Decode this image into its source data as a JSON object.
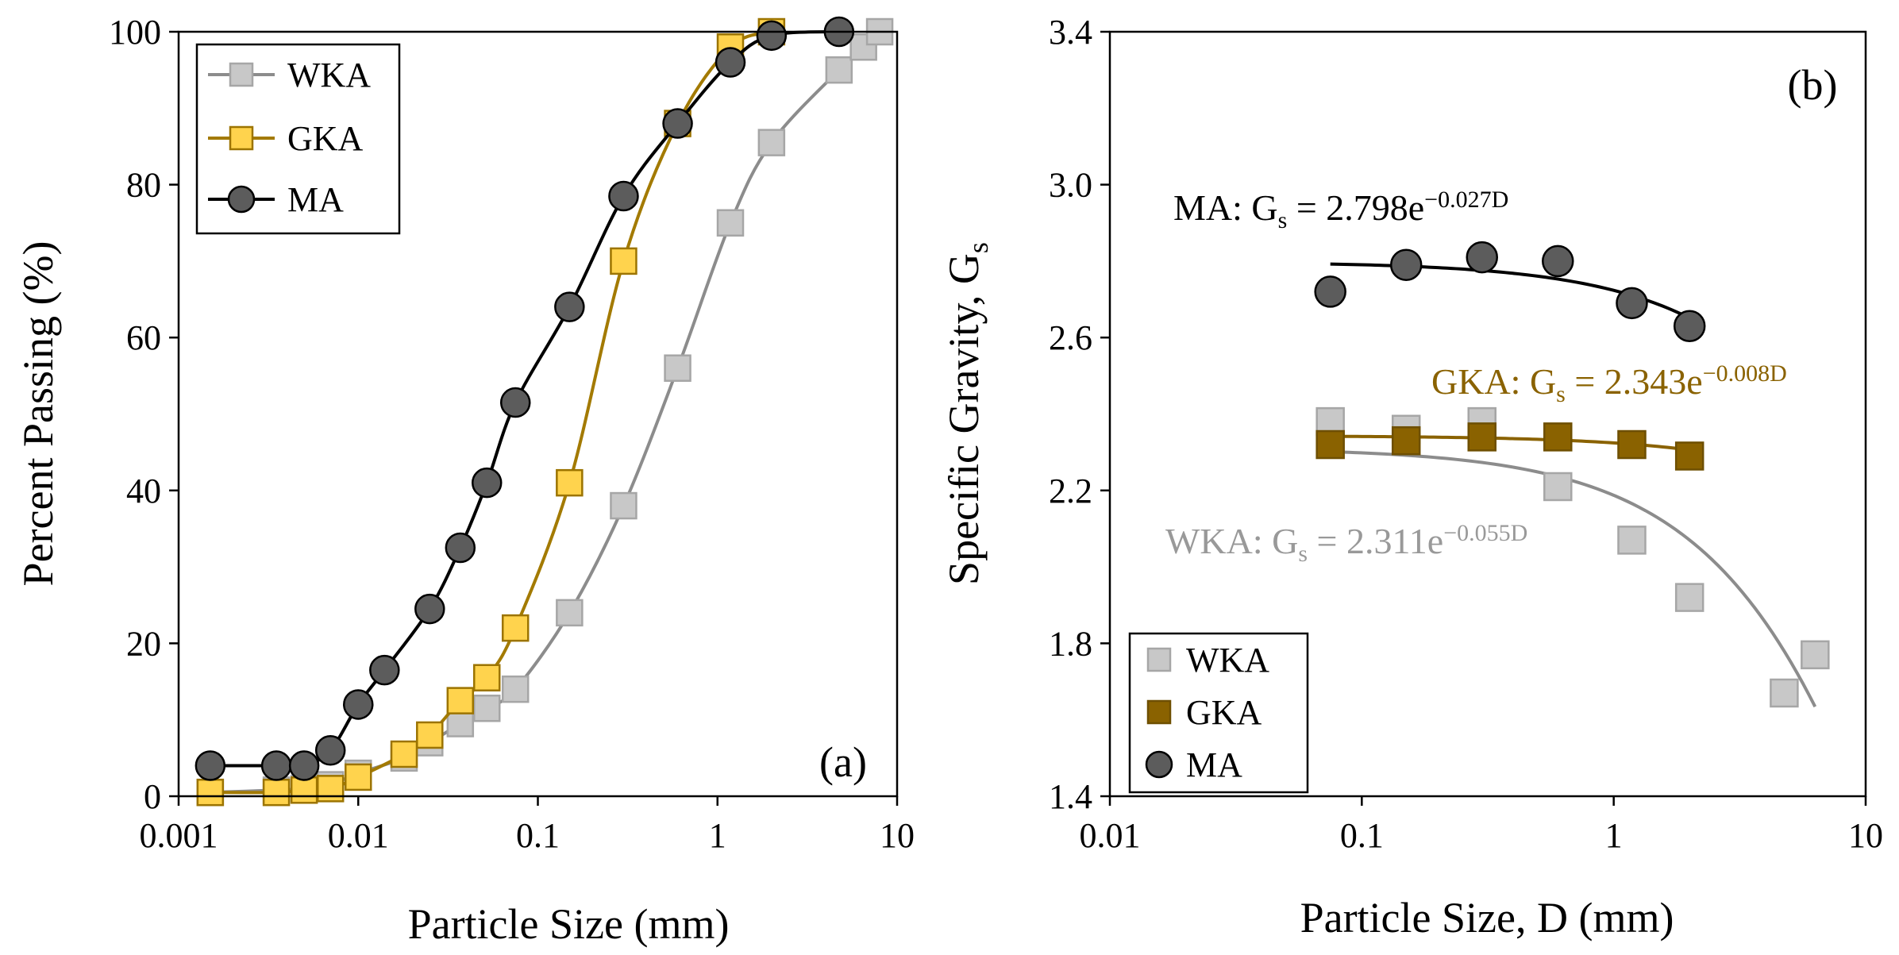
{
  "figure": {
    "panels": [
      {
        "id": "a",
        "tag": "(a)",
        "chart_data": {
          "type": "line",
          "title": "",
          "xlabel": "Particle Size (mm)",
          "ylabel": "Percent Passing (%)",
          "xscale": "log",
          "xlim": [
            0.001,
            10
          ],
          "ylim": [
            0,
            100
          ],
          "xticks": [
            0.001,
            0.01,
            0.1,
            1,
            10
          ],
          "xtick_labels": [
            "0.001",
            "0.01",
            "0.1",
            "1",
            "10"
          ],
          "yticks": [
            0,
            20,
            40,
            60,
            80,
            100
          ],
          "ytick_labels": [
            "0",
            "20",
            "40",
            "60",
            "80",
            "100"
          ],
          "legend_position": "top-left",
          "series": [
            {
              "name": "WKA",
              "marker": "square",
              "line_color": "#8c8c8c",
              "marker_fill": "#c8c8c8",
              "marker_edge": "#a6a6a6",
              "points": [
                [
                  0.0015,
                  0.5
                ],
                [
                  0.0035,
                  0.8
                ],
                [
                  0.005,
                  1.0
                ],
                [
                  0.007,
                  1.5
                ],
                [
                  0.01,
                  3.0
                ],
                [
                  0.018,
                  5.0
                ],
                [
                  0.025,
                  7.0
                ],
                [
                  0.037,
                  9.5
                ],
                [
                  0.052,
                  11.5
                ],
                [
                  0.075,
                  14.0
                ],
                [
                  0.15,
                  24.0
                ],
                [
                  0.3,
                  38.0
                ],
                [
                  0.6,
                  56.0
                ],
                [
                  1.18,
                  75.0
                ],
                [
                  2.0,
                  85.5
                ],
                [
                  4.75,
                  95.0
                ],
                [
                  6.5,
                  98.0
                ],
                [
                  8.0,
                  100.0
                ]
              ]
            },
            {
              "name": "GKA",
              "marker": "square",
              "line_color": "#a37a00",
              "marker_fill": "#ffd34d",
              "marker_edge": "#9c7400",
              "points": [
                [
                  0.0015,
                  0.5
                ],
                [
                  0.0035,
                  0.5
                ],
                [
                  0.005,
                  0.8
                ],
                [
                  0.007,
                  1.0
                ],
                [
                  0.01,
                  2.5
                ],
                [
                  0.018,
                  5.5
                ],
                [
                  0.025,
                  8.0
                ],
                [
                  0.037,
                  12.5
                ],
                [
                  0.052,
                  15.5
                ],
                [
                  0.075,
                  22.0
                ],
                [
                  0.15,
                  41.0
                ],
                [
                  0.3,
                  70.0
                ],
                [
                  0.6,
                  88.0
                ],
                [
                  1.18,
                  98.0
                ],
                [
                  2.0,
                  100.0
                ]
              ]
            },
            {
              "name": "MA",
              "marker": "circle",
              "line_color": "#000000",
              "marker_fill": "#5c5c5c",
              "marker_edge": "#000000",
              "points": [
                [
                  0.0015,
                  4.0
                ],
                [
                  0.0035,
                  4.0
                ],
                [
                  0.005,
                  4.0
                ],
                [
                  0.007,
                  6.0
                ],
                [
                  0.01,
                  12.0
                ],
                [
                  0.014,
                  16.5
                ],
                [
                  0.025,
                  24.5
                ],
                [
                  0.037,
                  32.5
                ],
                [
                  0.052,
                  41.0
                ],
                [
                  0.075,
                  51.5
                ],
                [
                  0.15,
                  64.0
                ],
                [
                  0.3,
                  78.5
                ],
                [
                  0.6,
                  88.0
                ],
                [
                  1.18,
                  96.0
                ],
                [
                  2.0,
                  99.5
                ],
                [
                  4.75,
                  100.0
                ]
              ]
            }
          ]
        }
      },
      {
        "id": "b",
        "tag": "(b)",
        "chart_data": {
          "type": "scatter",
          "title": "",
          "xlabel": "Particle Size, D (mm)",
          "ylabel_main": "Specific Gravity, G",
          "ylabel_sub": "s",
          "xscale": "log",
          "xlim": [
            0.01,
            10
          ],
          "ylim": [
            1.4,
            3.4
          ],
          "xticks": [
            0.01,
            0.1,
            1,
            10
          ],
          "xtick_labels": [
            "0.01",
            "0.1",
            "1",
            "10"
          ],
          "yticks": [
            1.4,
            1.8,
            2.2,
            2.6,
            3.0,
            3.4
          ],
          "ytick_labels": [
            "1.4",
            "1.8",
            "2.2",
            "2.6",
            "3.0",
            "3.4"
          ],
          "legend_position": "bottom-left",
          "series": [
            {
              "name": "WKA",
              "marker": "square",
              "marker_fill": "#c8c8c8",
              "marker_edge": "#a6a6a6",
              "line_color": "#8c8c8c",
              "points": [
                [
                  0.075,
                  2.38
                ],
                [
                  0.15,
                  2.36
                ],
                [
                  0.3,
                  2.38
                ],
                [
                  0.6,
                  2.21
                ],
                [
                  1.18,
                  2.07
                ],
                [
                  2.0,
                  1.92
                ],
                [
                  4.75,
                  1.67
                ],
                [
                  6.3,
                  1.77
                ]
              ],
              "fit": {
                "a": 2.311,
                "b": -0.055,
                "x_range": [
                  0.075,
                  6.3
                ]
              },
              "equation": {
                "prefix": "WKA: G",
                "sub": "s",
                "mid": " = 2.311e",
                "sup": "−0.055D"
              }
            },
            {
              "name": "GKA",
              "marker": "square",
              "marker_fill": "#8a6200",
              "marker_edge": "#6e4f00",
              "line_color": "#8a6200",
              "points": [
                [
                  0.075,
                  2.32
                ],
                [
                  0.15,
                  2.33
                ],
                [
                  0.3,
                  2.34
                ],
                [
                  0.6,
                  2.34
                ],
                [
                  1.18,
                  2.32
                ],
                [
                  2.0,
                  2.29
                ]
              ],
              "fit": {
                "a": 2.343,
                "b": -0.008,
                "x_range": [
                  0.075,
                  2.0
                ]
              },
              "equation": {
                "prefix": "GKA: G",
                "sub": "s",
                "mid": " = 2.343e",
                "sup": "−0.008D"
              }
            },
            {
              "name": "MA",
              "marker": "circle",
              "marker_fill": "#5c5c5c",
              "marker_edge": "#000000",
              "line_color": "#000000",
              "points": [
                [
                  0.075,
                  2.72
                ],
                [
                  0.15,
                  2.79
                ],
                [
                  0.3,
                  2.81
                ],
                [
                  0.6,
                  2.8
                ],
                [
                  1.18,
                  2.69
                ],
                [
                  2.0,
                  2.63
                ]
              ],
              "fit": {
                "a": 2.798,
                "b": -0.027,
                "x_range": [
                  0.075,
                  2.0
                ]
              },
              "equation": {
                "prefix": "MA: G",
                "sub": "s",
                "mid": " = 2.798e",
                "sup": "−0.027D"
              }
            }
          ]
        }
      }
    ]
  }
}
